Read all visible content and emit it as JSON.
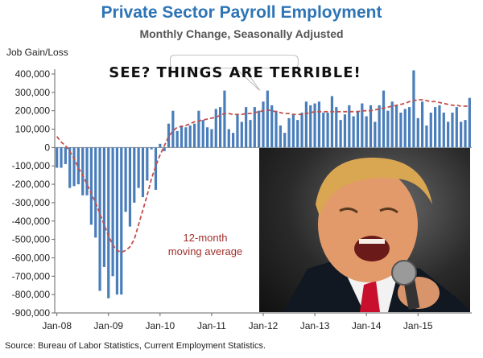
{
  "header": {
    "title": "Private Sector Payroll Employment",
    "subtitle": "Monthly Change, Seasonally Adjusted",
    "ylabel": "Job Gain/Loss"
  },
  "annotations": {
    "speech": "SEE? THINGS ARE TERRIBLE!",
    "ma_line1": "12-month",
    "ma_line2": "moving average"
  },
  "footer": {
    "source": "Source: Bureau of Labor Statistics, Current Employment Statistics."
  },
  "colors": {
    "bar": "#4a7ebb",
    "moving_average": "#c0504d",
    "title": "#2e75b6"
  },
  "chart_data": {
    "type": "bar",
    "title": "Private Sector Payroll Employment",
    "subtitle": "Monthly Change, Seasonally Adjusted",
    "ylabel": "Job Gain/Loss",
    "xlabel": "",
    "ylim": [
      -900000,
      400000
    ],
    "yticks": [
      400000,
      300000,
      200000,
      100000,
      0,
      -100000,
      -200000,
      -300000,
      -400000,
      -500000,
      -600000,
      -700000,
      -800000,
      -900000
    ],
    "ytick_labels": [
      "400,000",
      "300,000",
      "200,000",
      "100,000",
      "0",
      "-100,000",
      "-200,000",
      "-300,000",
      "-400,000",
      "-500,000",
      "-600,000",
      "-700,000",
      "-800,000",
      "-900,000"
    ],
    "xtick_labels": [
      "Jan-08",
      "Jan-09",
      "Jan-10",
      "Jan-11",
      "Jan-12",
      "Jan-13",
      "Jan-14",
      "Jan-15"
    ],
    "start_month": "Jan-08",
    "series": [
      {
        "name": "Monthly change",
        "values": [
          -110000,
          -110000,
          -90000,
          -220000,
          -210000,
          -200000,
          -260000,
          -260000,
          -420000,
          -490000,
          -780000,
          -650000,
          -820000,
          -700000,
          -800000,
          -800000,
          -350000,
          -430000,
          -300000,
          -220000,
          -270000,
          -180000,
          -10000,
          -230000,
          20000,
          -20000,
          130000,
          200000,
          90000,
          120000,
          110000,
          120000,
          130000,
          200000,
          150000,
          110000,
          100000,
          210000,
          220000,
          310000,
          100000,
          80000,
          180000,
          140000,
          220000,
          150000,
          220000,
          200000,
          250000,
          310000,
          230000,
          200000,
          120000,
          80000,
          160000,
          180000,
          150000,
          190000,
          250000,
          230000,
          240000,
          250000,
          190000,
          190000,
          280000,
          220000,
          150000,
          180000,
          230000,
          170000,
          200000,
          240000,
          170000,
          230000,
          140000,
          230000,
          310000,
          200000,
          250000,
          230000,
          190000,
          210000,
          220000,
          420000,
          160000,
          250000,
          120000,
          190000,
          220000,
          230000,
          190000,
          140000,
          190000,
          220000,
          140000,
          150000,
          270000
        ]
      },
      {
        "name": "12-month moving average",
        "values": [
          60000,
          30000,
          10000,
          -20000,
          -60000,
          -110000,
          -150000,
          -200000,
          -250000,
          -300000,
          -360000,
          -420000,
          -480000,
          -530000,
          -560000,
          -570000,
          -560000,
          -540000,
          -500000,
          -420000,
          -340000,
          -260000,
          -170000,
          -100000,
          -40000,
          10000,
          60000,
          90000,
          110000,
          115000,
          120000,
          130000,
          140000,
          145000,
          150000,
          155000,
          160000,
          165000,
          175000,
          185000,
          185000,
          180000,
          180000,
          180000,
          185000,
          185000,
          190000,
          195000,
          200000,
          205000,
          200000,
          195000,
          190000,
          185000,
          185000,
          180000,
          180000,
          180000,
          185000,
          190000,
          195000,
          195000,
          195000,
          195000,
          195000,
          195000,
          195000,
          195000,
          195000,
          195000,
          195000,
          200000,
          200000,
          200000,
          205000,
          210000,
          215000,
          220000,
          225000,
          230000,
          235000,
          240000,
          250000,
          255000,
          260000,
          260000,
          255000,
          250000,
          250000,
          245000,
          240000,
          235000,
          230000,
          230000,
          225000,
          225000,
          225000
        ]
      }
    ]
  }
}
